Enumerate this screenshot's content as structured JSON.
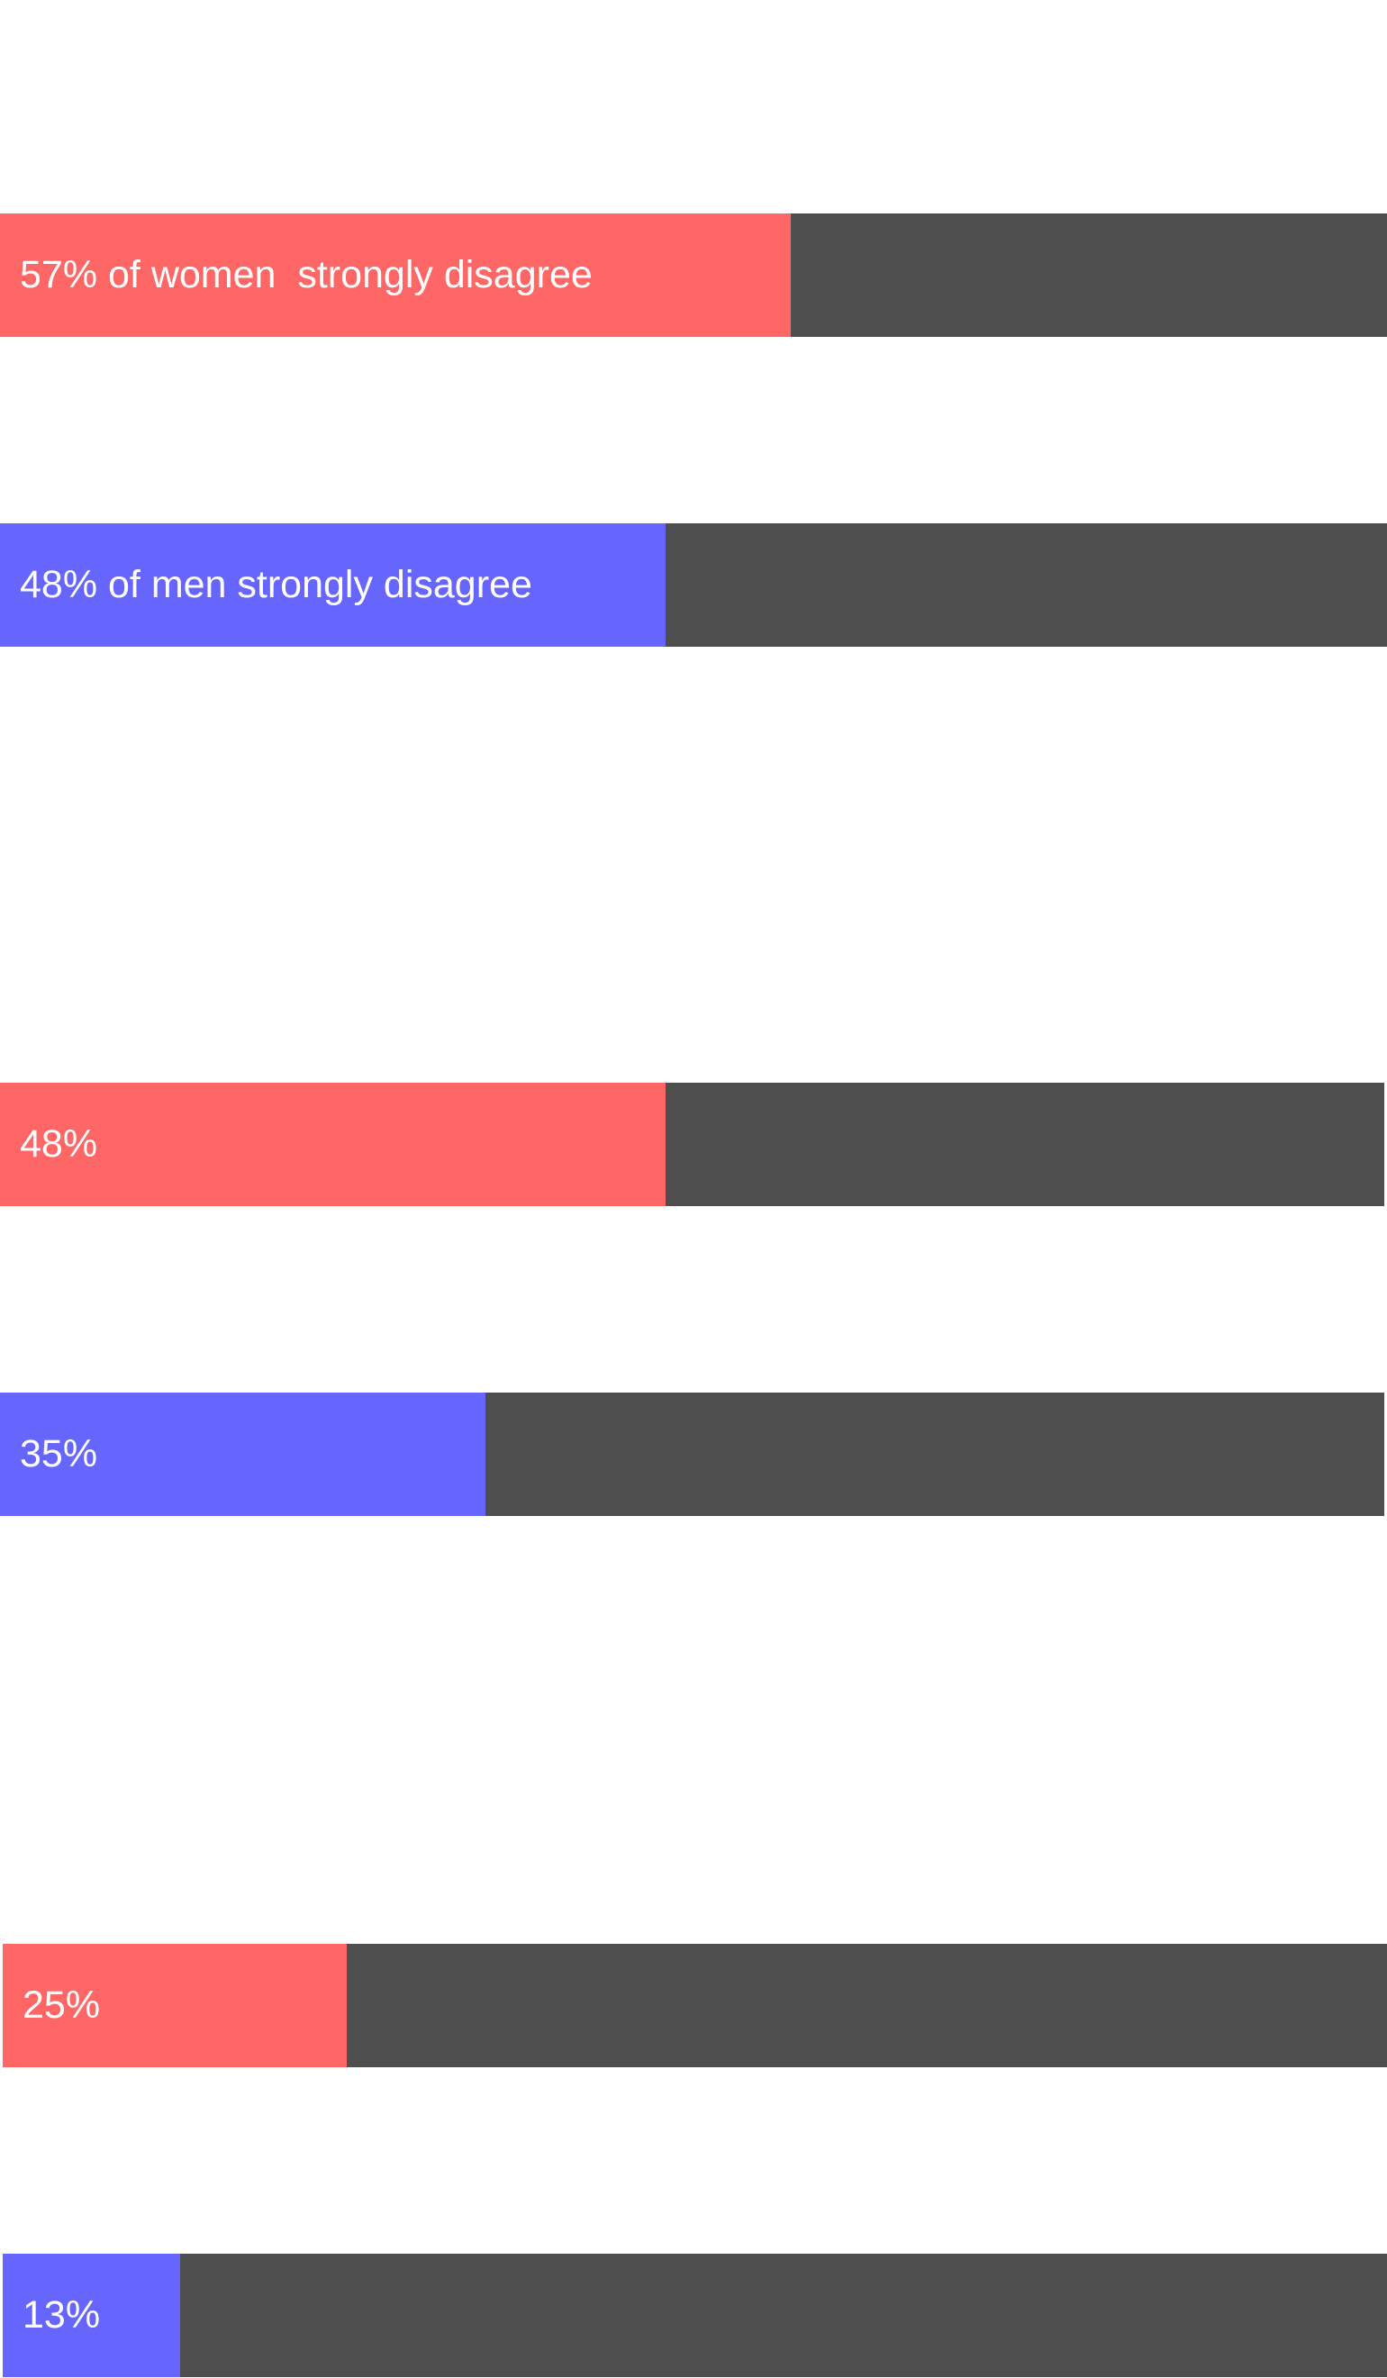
{
  "colors": {
    "women": "#ff6666",
    "men": "#6666ff",
    "track": "#4e4e4e",
    "background": "#ffffff",
    "label": "#ffffff"
  },
  "chart_data": [
    {
      "type": "bar",
      "orientation": "horizontal",
      "ylim": [
        0,
        100
      ],
      "bars": [
        {
          "group": "women",
          "value": 57,
          "label": "57% of women  strongly disagree"
        },
        {
          "group": "men",
          "value": 48,
          "label": "48% of men strongly disagree"
        }
      ]
    },
    {
      "type": "bar",
      "orientation": "horizontal",
      "ylim": [
        0,
        100
      ],
      "bars": [
        {
          "group": "women",
          "value": 48,
          "label": "48%"
        },
        {
          "group": "men",
          "value": 35,
          "label": "35%"
        }
      ]
    },
    {
      "type": "bar",
      "orientation": "horizontal",
      "ylim": [
        0,
        100
      ],
      "bars": [
        {
          "group": "women",
          "value": 25,
          "label": "25%"
        },
        {
          "group": "men",
          "value": 13,
          "label": "13%"
        }
      ]
    }
  ]
}
